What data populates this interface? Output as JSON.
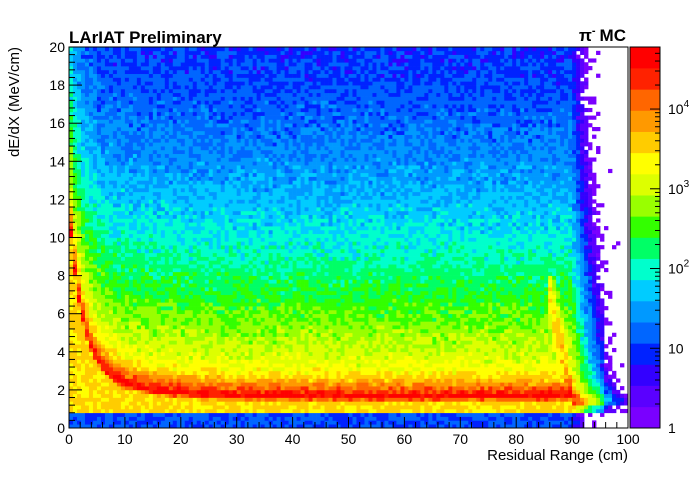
{
  "header": {
    "preliminary_label": "LArIAT Preliminary",
    "sample_label_pi": "π",
    "sample_label_charge": "-",
    "sample_label_mc": "MC"
  },
  "chart_data": {
    "type": "heatmap",
    "title": "",
    "xlabel": "Residual Range (cm)",
    "ylabel": "dE/dX (MeV/cm)",
    "xlim": [
      0,
      100
    ],
    "ylim": [
      0,
      20
    ],
    "x_ticks": [
      "0",
      "10",
      "20",
      "30",
      "40",
      "50",
      "60",
      "70",
      "80",
      "90",
      "100"
    ],
    "y_ticks": [
      "0",
      "2",
      "4",
      "6",
      "8",
      "10",
      "12",
      "14",
      "16",
      "18",
      "20"
    ],
    "z_scale": "log",
    "zlim": [
      1,
      60000
    ],
    "z_ticks": [
      {
        "value": 1,
        "base": "1",
        "exp": ""
      },
      {
        "value": 10,
        "base": "10",
        "exp": ""
      },
      {
        "value": 100,
        "base": "10",
        "exp": "2"
      },
      {
        "value": 1000,
        "base": "10",
        "exp": "3"
      },
      {
        "value": 10000,
        "base": "10",
        "exp": "4"
      }
    ],
    "palette": [
      "#7a00ff",
      "#5a00ff",
      "#3300ff",
      "#0022ff",
      "#0066ff",
      "#0099ff",
      "#00ccff",
      "#00ffcc",
      "#00ff66",
      "#33ff00",
      "#99ff00",
      "#ddff00",
      "#ffff00",
      "#ffcc00",
      "#ff9900",
      "#ff6600",
      "#ff2200",
      "#ff0000"
    ],
    "description_features": {
      "band_peak_dEdx": 1.7,
      "band_end_residual_range": 90,
      "bin_count_x": 140,
      "bin_count_y": 100
    }
  }
}
